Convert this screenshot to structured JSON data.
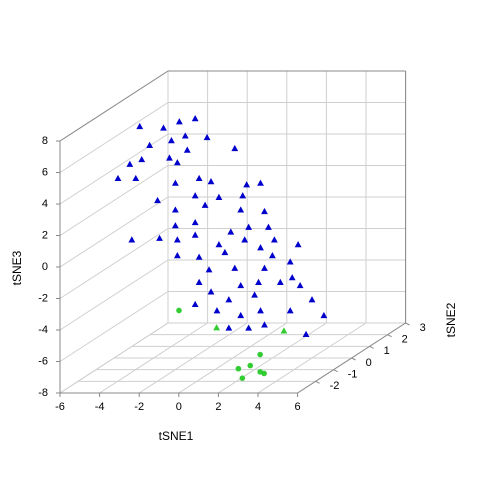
{
  "chart_data": {
    "type": "scatter3d",
    "xlabel": "tSNE1",
    "ylabel": "tSNE2",
    "zlabel": "tSNE3",
    "xlim": [
      -6,
      6
    ],
    "ylim": [
      -3,
      3
    ],
    "zlim": [
      -8,
      8
    ],
    "xticks": [
      -6,
      -4,
      -2,
      0,
      2,
      4,
      6
    ],
    "yticks": [
      -2,
      -1,
      0,
      1,
      2,
      3
    ],
    "zticks": [
      -8,
      -6,
      -4,
      -2,
      0,
      2,
      4,
      6,
      8
    ],
    "grid": true,
    "series": [
      {
        "color": "#0000cd",
        "marker": "triangle",
        "x": [
          -4.7,
          -3.5,
          -2.7,
          -1.9,
          -4.2,
          -3.1,
          -2.4,
          -1.3,
          -5.2,
          -4.6,
          -3.2,
          -2.3,
          -5.8,
          -4.9,
          -2.8,
          0.1,
          -2.9,
          -1.7,
          -1.1,
          0.7,
          1.4,
          -3.8,
          -1.9,
          -0.7,
          0.5,
          -2.9,
          -1.4,
          0.4,
          1.6,
          -2.9,
          -1.9,
          -0.1,
          0.8,
          1.8,
          -5.1,
          -3.7,
          -2.8,
          -1.9,
          -0.7,
          0.6,
          1.4,
          2.1,
          3.3,
          -2.8,
          -1.7,
          -0.4,
          2.0,
          2.9,
          -1.2,
          0.1,
          1.6,
          3.0,
          -1.7,
          0.4,
          1.3,
          2.4,
          -1.1,
          -0.2,
          1.1,
          3.4,
          4.0,
          -1.9,
          -0.8,
          0.4,
          1.4,
          2.9,
          4.6,
          -0.2,
          0.8,
          1.6,
          3.7
        ],
        "y": [
          0,
          0,
          0,
          0,
          0,
          0,
          0,
          0,
          0,
          0,
          0,
          0,
          0,
          0,
          0,
          0,
          0,
          0,
          0,
          0,
          0,
          0,
          0,
          0,
          0,
          0,
          0,
          0,
          0,
          0,
          0,
          0,
          0,
          0,
          0,
          0,
          0,
          0,
          0,
          0,
          0,
          0,
          0,
          0,
          0,
          0,
          0,
          0,
          0,
          0,
          0,
          0,
          0,
          0,
          0,
          0,
          0,
          0,
          0,
          0,
          0,
          0,
          0,
          0,
          0,
          0,
          0,
          0,
          0,
          0,
          0
        ],
        "z": [
          6.7,
          6.6,
          7.0,
          7.2,
          5.5,
          5.8,
          6.1,
          6.0,
          4.3,
          4.6,
          4.7,
          5.2,
          3.4,
          3.4,
          4.4,
          5.3,
          3.1,
          3.4,
          3.2,
          3.0,
          3.1,
          2.0,
          2.3,
          2.2,
          2.3,
          1.4,
          1.7,
          1.4,
          1.3,
          0.4,
          0.6,
          0.0,
          0.3,
          0.3,
          -0.5,
          -0.4,
          -0.5,
          -0.2,
          -0.8,
          -0.5,
          -1.0,
          -0.5,
          -0.8,
          -1.5,
          -1.6,
          -1.3,
          -1.5,
          -1.9,
          -2.4,
          -2.3,
          -2.3,
          -2.9,
          -3.2,
          -3.4,
          -3.2,
          -3.2,
          -3.8,
          -4.3,
          -4.0,
          -3.4,
          -4.3,
          -4.6,
          -5.0,
          -5.3,
          -5.0,
          -5.0,
          -5.3,
          -6.1,
          -6.1,
          -5.9,
          -6.5
        ]
      },
      {
        "color": "#33cc33",
        "marker": "triangle",
        "x": [
          1.0,
          4.4
        ],
        "y": [
          -2,
          -2
        ],
        "z": [
          -4.6,
          -4.8
        ]
      },
      {
        "color": "#33cc33",
        "marker": "circle",
        "x": [
          -0.9,
          3.2,
          2.7,
          2.1,
          3.2,
          3.4,
          2.3
        ],
        "y": [
          -2,
          -2,
          -2,
          -2,
          -2,
          -2,
          -2
        ],
        "z": [
          -3.5,
          -6.3,
          -7.0,
          -7.2,
          -7.4,
          -7.5,
          -7.8
        ]
      }
    ]
  }
}
